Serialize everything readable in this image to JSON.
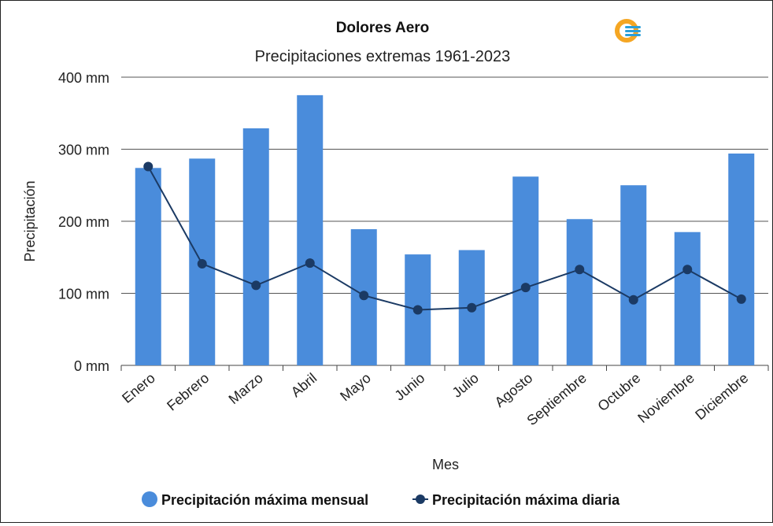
{
  "chart_data": {
    "type": "bar",
    "title": "Dolores Aero",
    "subtitle": "Precipitaciones extremas 1961-2023",
    "xlabel": "Mes",
    "ylabel": "Precipitación",
    "ylim": [
      0,
      400
    ],
    "yticks": [
      {
        "value": 0,
        "label": "0 mm"
      },
      {
        "value": 100,
        "label": "100 mm"
      },
      {
        "value": 200,
        "label": "200 mm"
      },
      {
        "value": 300,
        "label": "300 mm"
      },
      {
        "value": 400,
        "label": "400 mm"
      }
    ],
    "grid": true,
    "legend_position": "bottom",
    "categories": [
      "Enero",
      "Febrero",
      "Marzo",
      "Abril",
      "Mayo",
      "Junio",
      "Julio",
      "Agosto",
      "Septiembre",
      "Octubre",
      "Noviembre",
      "Diciembre"
    ],
    "series": [
      {
        "name": "Precipitación máxima mensual",
        "type": "bar",
        "color": "#4a8cdb",
        "values": [
          274,
          287,
          329,
          375,
          189,
          154,
          160,
          262,
          203,
          250,
          185,
          294
        ]
      },
      {
        "name": "Precipitación máxima diaria",
        "type": "line",
        "color": "#1b3a64",
        "values": [
          276,
          141,
          111,
          142,
          97,
          77,
          80,
          108,
          133,
          91,
          133,
          92
        ]
      }
    ]
  },
  "logo": {
    "icon": "smn-logo-icon",
    "colors": [
      "#f5a623",
      "#2b9fd9"
    ]
  }
}
